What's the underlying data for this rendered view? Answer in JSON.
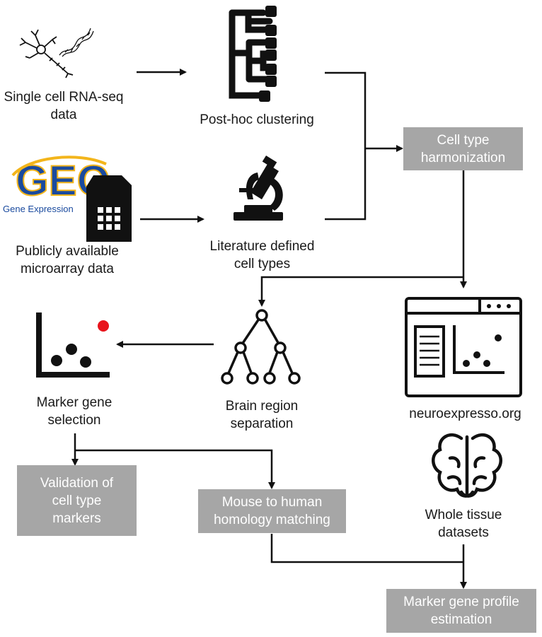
{
  "sources": {
    "scrnaseq": {
      "line1": "Single cell RNA-seq",
      "line2": "data"
    },
    "microarray": {
      "line1": "Publicly available",
      "line2": "microarray data"
    },
    "geo_logo": {
      "word": "GEO",
      "caption": "Gene Expression Omnibus"
    }
  },
  "steps": {
    "clustering": {
      "label": "Post-hoc clustering"
    },
    "literature": {
      "line1": "Literature defined",
      "line2": "cell types"
    },
    "harmonization": {
      "line1": "Cell type",
      "line2": "harmonization"
    },
    "brain_region": {
      "line1": "Brain region",
      "line2": "separation"
    },
    "marker_selection": {
      "line1": "Marker gene",
      "line2": "selection"
    },
    "neuroexpresso": {
      "label": "neuroexpresso.org"
    },
    "whole_tissue": {
      "line1": "Whole tissue",
      "line2": "datasets"
    },
    "validation": {
      "line1": "Validation of",
      "line2": "cell type",
      "line3": "markers"
    },
    "homology": {
      "line1": "Mouse to human",
      "line2": "homology matching"
    },
    "mgp": {
      "line1": "Marker gene profile",
      "line2": "estimation"
    }
  },
  "colors": {
    "box_fill": "#a6a6a6",
    "box_text": "#ffffff",
    "highlight_point": "#e8141c",
    "geo_blue": "#1a4a9e",
    "geo_yellow": "#f3b51b"
  }
}
